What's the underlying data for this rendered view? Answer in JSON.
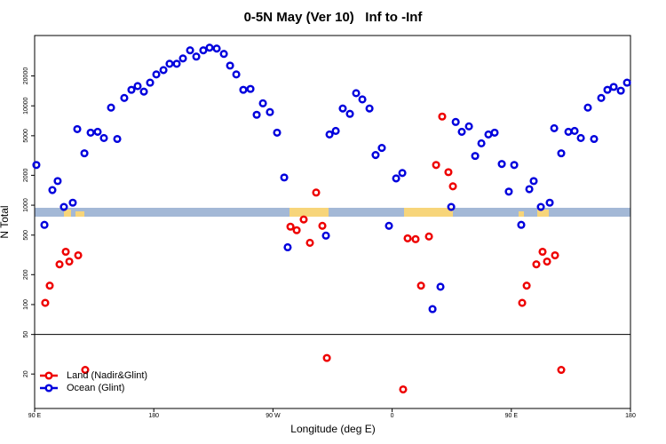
{
  "chart_data": {
    "type": "scatter",
    "title": "0-5N May (Ver 10)   Inf to -Inf",
    "x_label": "Longitude (deg E)",
    "y_label": "N Total",
    "log_y": true,
    "xlim": [
      90,
      540
    ],
    "xticks": [
      {
        "value": 90,
        "label": "90 E"
      },
      {
        "value": 180,
        "label": "180"
      },
      {
        "value": 270,
        "label": "90 W"
      },
      {
        "value": 360,
        "label": "0"
      },
      {
        "value": 450,
        "label": "90 E"
      },
      {
        "value": 540,
        "label": "180"
      }
    ],
    "ylim": [
      9,
      51000
    ],
    "yticks": [
      20,
      50,
      100,
      200,
      500,
      1000,
      2000,
      5000,
      10000,
      20000
    ],
    "break_at": 50,
    "legend": "bottom-left",
    "series": [
      {
        "name": "Land (Nadir&Glint)",
        "color": "#ee0000",
        "x": [
          98.0,
          101.4,
          108.8,
          113.5,
          116.2,
          122.9,
          128.2,
          283.2,
          287.9,
          293.2,
          297.9,
          302.6,
          307.3,
          310.7,
          368.3,
          371.7,
          377.7,
          381.8,
          387.8,
          393.2,
          397.8,
          402.5,
          405.9,
          458.2,
          461.6,
          468.9,
          473.6,
          477.0,
          483.0,
          487.7
        ],
        "values": [
          104,
          155,
          254,
          340,
          271,
          313,
          22,
          608,
          560,
          718,
          418,
          1340,
          620,
          29,
          14,
          464,
          455,
          155,
          484,
          2540,
          7800,
          2150,
          1550,
          104,
          155,
          254,
          340,
          271,
          313,
          22
        ]
      },
      {
        "name": "Ocean (Glint)",
        "color": "#0000dd",
        "x": [
          91.3,
          97.4,
          103.4,
          107.4,
          112.1,
          118.8,
          122.2,
          127.6,
          132.3,
          137.6,
          142.3,
          147.7,
          152.4,
          157.7,
          163.1,
          167.8,
          172.5,
          177.2,
          181.9,
          187.3,
          191.9,
          197.3,
          202.0,
          207.4,
          212.1,
          217.4,
          222.1,
          227.5,
          232.9,
          237.6,
          242.3,
          247.6,
          253.0,
          257.7,
          262.4,
          267.7,
          273.1,
          278.5,
          281.1,
          310.0,
          312.7,
          317.4,
          322.7,
          328.1,
          332.8,
          337.5,
          342.9,
          347.5,
          352.2,
          357.6,
          363.0,
          367.7,
          390.5,
          396.5,
          404.6,
          408.0,
          412.6,
          418.0,
          422.7,
          427.4,
          432.7,
          437.4,
          442.8,
          448.1,
          452.2,
          457.5,
          463.6,
          466.9,
          472.3,
          479.0,
          482.4,
          487.7,
          493.1,
          497.8,
          502.5,
          507.8,
          512.5,
          517.9,
          522.6,
          527.3,
          532.7,
          537.4
        ],
        "values": [
          2540,
          634,
          1420,
          1750,
          960,
          1060,
          5830,
          3330,
          5370,
          5480,
          4740,
          9590,
          4640,
          12000,
          14500,
          15800,
          13900,
          17100,
          20700,
          22900,
          26500,
          26500,
          30000,
          36200,
          31300,
          36200,
          38500,
          37700,
          33300,
          25400,
          20700,
          14500,
          14800,
          8130,
          10600,
          8650,
          5370,
          1900,
          377,
          494,
          5150,
          5590,
          9400,
          8300,
          13400,
          11600,
          9400,
          3200,
          3770,
          620,
          1860,
          2110,
          90,
          151,
          960,
          6880,
          5480,
          6210,
          3130,
          4190,
          5150,
          5370,
          2600,
          1370,
          2540,
          634,
          1450,
          1750,
          960,
          1060,
          5950,
          3330,
          5480,
          5590,
          4740,
          9590,
          4640,
          12000,
          14500,
          15500,
          14200,
          17100
        ]
      }
    ]
  }
}
